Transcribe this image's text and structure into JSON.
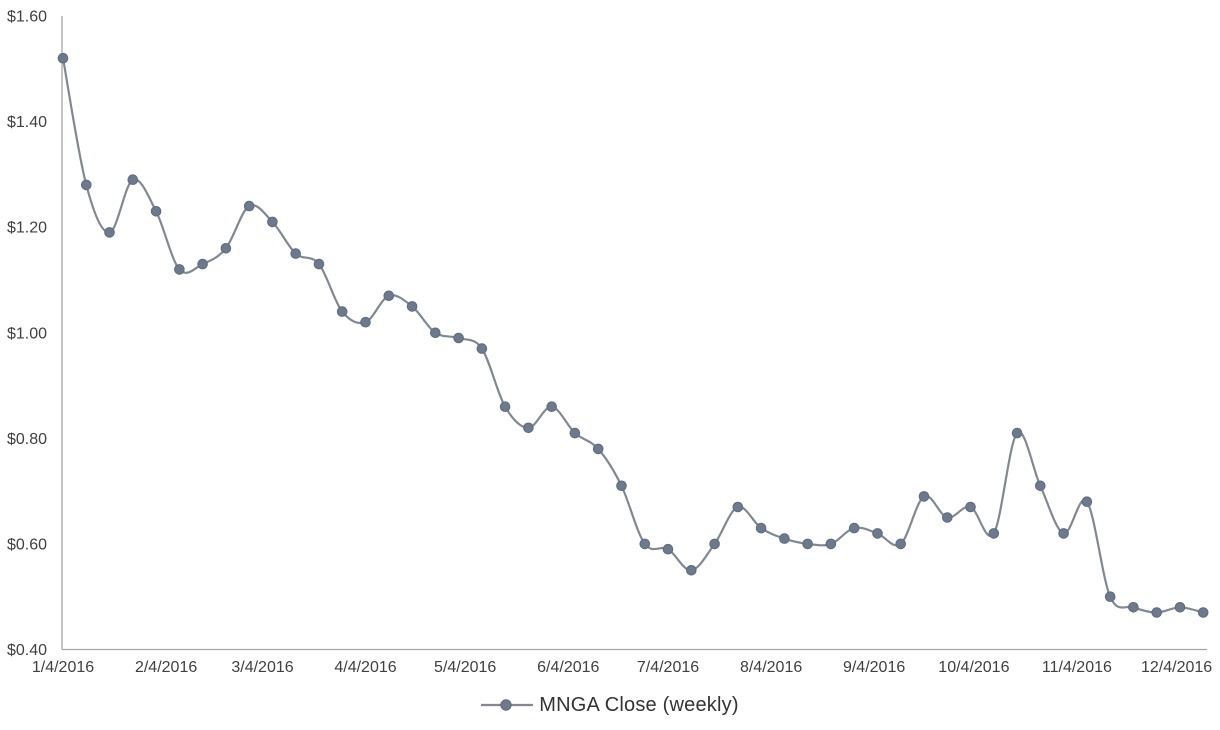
{
  "chart_data": {
    "type": "line",
    "title": "",
    "line_style": "smoothed",
    "grid": "off",
    "legend_position": "bottom-center",
    "axis_color": "#A6A6A6",
    "tick_text_color": "#404040",
    "series": [
      {
        "name": "MNGA Close (weekly)",
        "line_color": "#828891",
        "marker_color": "#6E7989",
        "marker_edge_color": "#5C6B86",
        "start_date": "1/4/2016",
        "interval": "weekly",
        "values": [
          1.52,
          1.28,
          1.19,
          1.29,
          1.23,
          1.12,
          1.13,
          1.16,
          1.24,
          1.21,
          1.15,
          1.13,
          1.04,
          1.02,
          1.07,
          1.05,
          1.0,
          0.99,
          0.97,
          0.86,
          0.82,
          0.86,
          0.81,
          0.78,
          0.71,
          0.6,
          0.59,
          0.55,
          0.6,
          0.67,
          0.63,
          0.61,
          0.6,
          0.6,
          0.63,
          0.62,
          0.6,
          0.69,
          0.65,
          0.67,
          0.62,
          0.81,
          0.71,
          0.62,
          0.68,
          0.5,
          0.48,
          0.47,
          0.48,
          0.47
        ]
      }
    ],
    "x_tick_labels": [
      "1/4/2016",
      "2/4/2016",
      "3/4/2016",
      "4/4/2016",
      "5/4/2016",
      "6/4/2016",
      "7/4/2016",
      "8/4/2016",
      "9/4/2016",
      "10/4/2016",
      "11/4/2016",
      "12/4/2016"
    ],
    "y_tick_labels": [
      "$1.60",
      "$1.40",
      "$1.20",
      "$1.00",
      "$0.80",
      "$0.60",
      "$0.40"
    ],
    "y_axis": {
      "min": 0.4,
      "max": 1.6,
      "step": 0.2,
      "format": "$0.00"
    }
  },
  "legend": {
    "label": "MNGA Close (weekly)"
  }
}
